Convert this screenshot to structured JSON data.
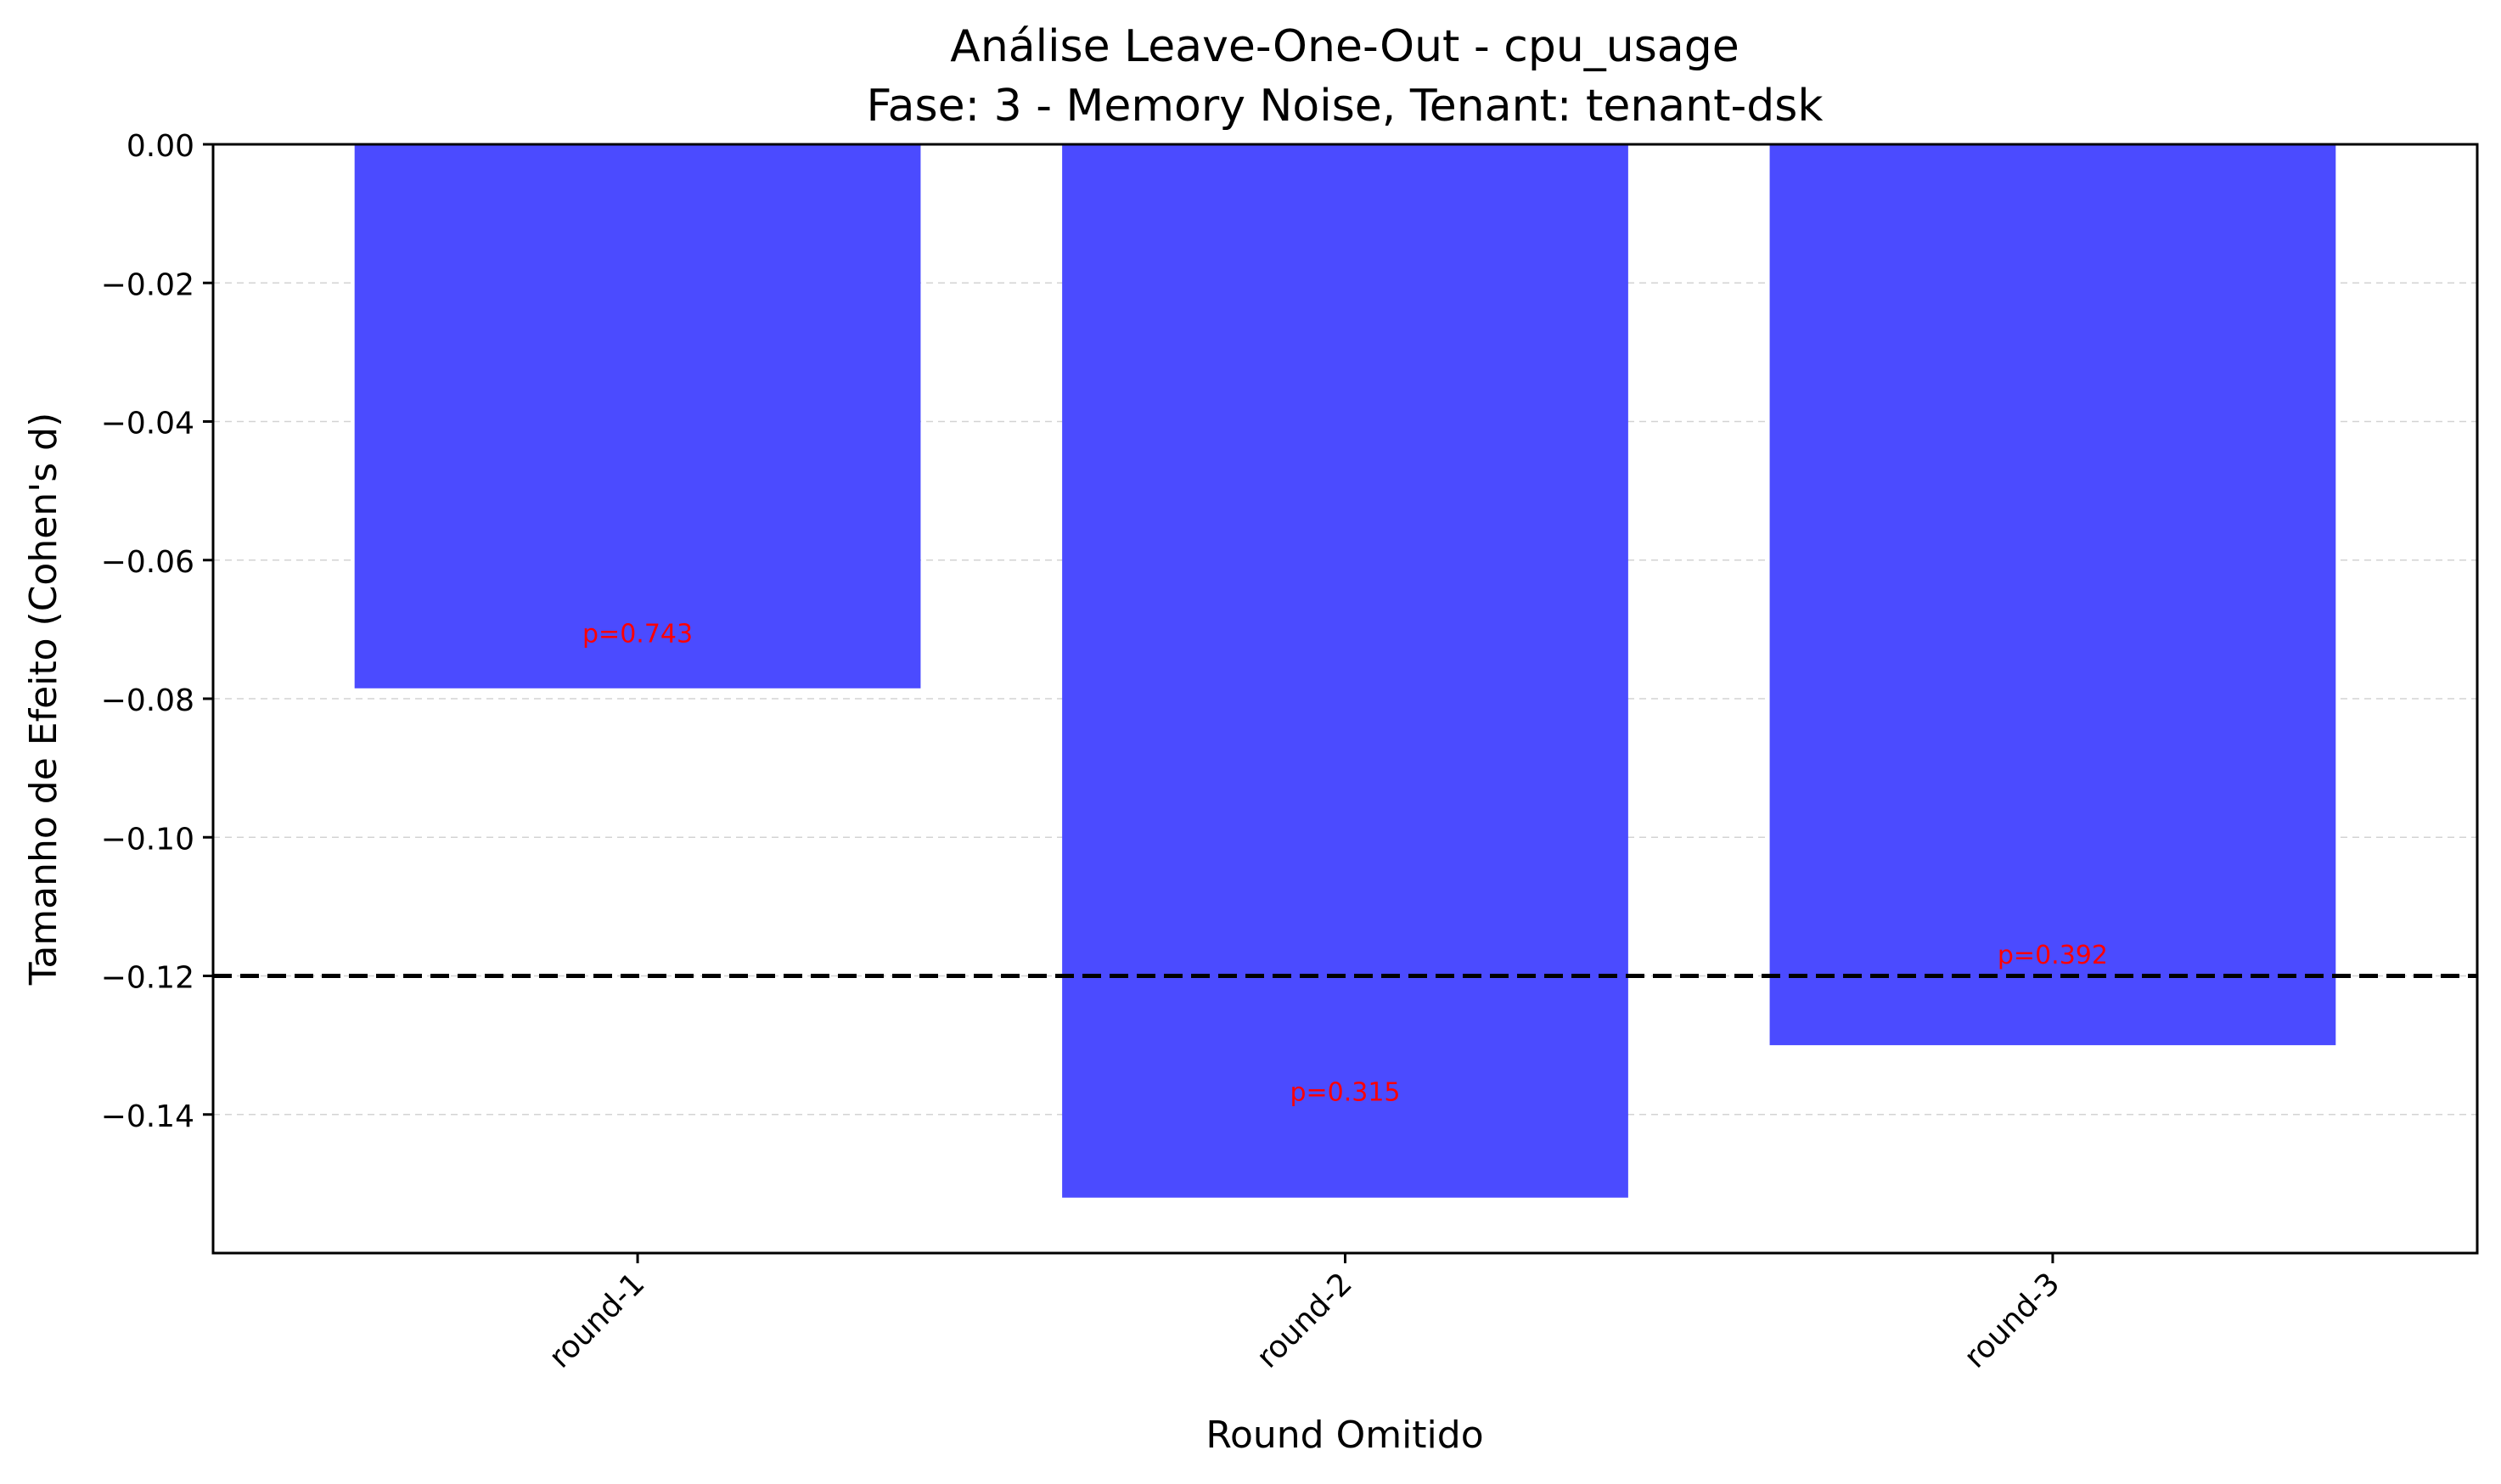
{
  "chart_data": {
    "type": "bar",
    "title": "Análise Leave-One-Out - cpu_usage",
    "subtitle": "Fase: 3 - Memory Noise, Tenant: tenant-dsk",
    "xlabel": "Round Omitido",
    "ylabel": "Tamanho de Efeito (Cohen's d)",
    "categories": [
      "round-1",
      "round-2",
      "round-3"
    ],
    "values": [
      -0.0785,
      -0.152,
      -0.13
    ],
    "annotations": [
      "p=0.743",
      "p=0.315",
      "p=0.392"
    ],
    "ylim": [
      -0.16,
      0.0
    ],
    "yticks": [
      0.0,
      -0.02,
      -0.04,
      -0.06,
      -0.08,
      -0.1,
      -0.12,
      -0.14
    ],
    "ytick_labels": [
      "0.00",
      "−0.02",
      "−0.04",
      "−0.06",
      "−0.08",
      "−0.10",
      "−0.12",
      "−0.14"
    ],
    "reference_line": -0.12,
    "grid": "horizontal dashed",
    "colors": {
      "bar": "#4b4bff",
      "annotation": "#ff0000",
      "reference_line": "#000000",
      "grid": "#d3d3d3"
    }
  }
}
